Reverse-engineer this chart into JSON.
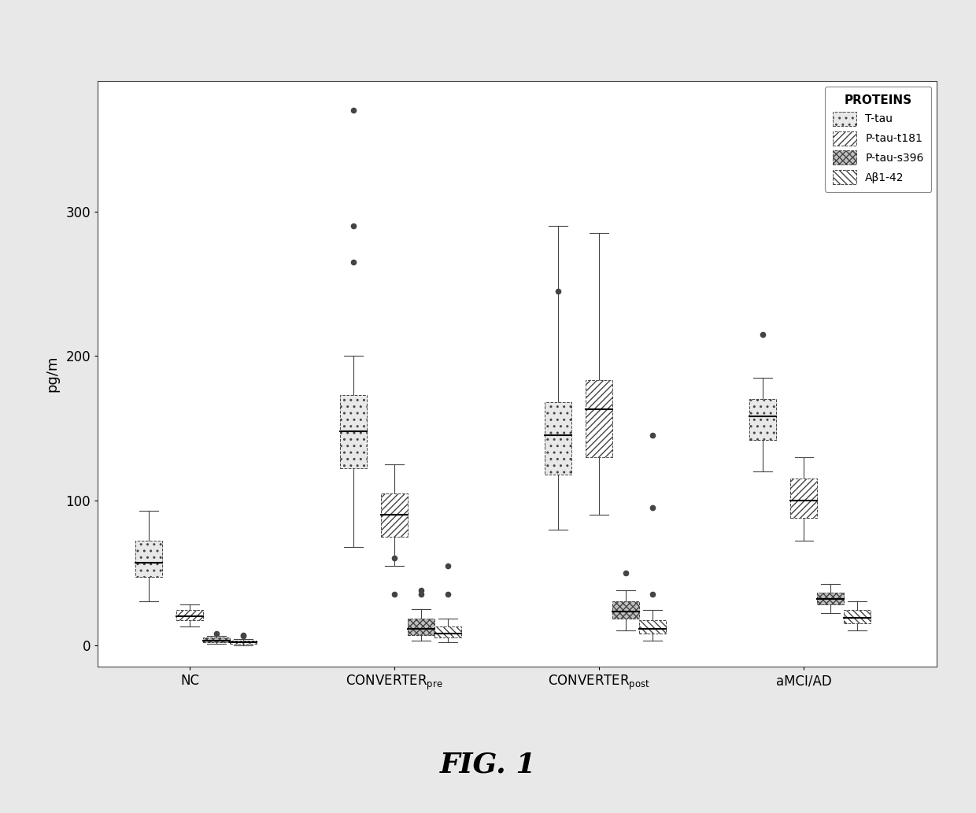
{
  "title": "FIG. 1",
  "ylabel": "pg/m",
  "groups": [
    "NC",
    "CONVERTER_pre",
    "CONVERTER_post",
    "aMCI/AD"
  ],
  "group_labels_main": [
    "NC",
    "CONVERTER",
    "CONVERTER",
    "aMCI/AD"
  ],
  "group_labels_sub": [
    "",
    "pre",
    "post",
    ""
  ],
  "proteins": [
    "T-tau",
    "P-tau-t181",
    "P-tau-s396",
    "Aβ1-42"
  ],
  "legend_proteins": [
    "T-tau",
    "P-tau-t181",
    "P-tau-s396",
    "Aβ1-42"
  ],
  "ylim": [
    -15,
    390
  ],
  "yticks": [
    0,
    100,
    200,
    300
  ],
  "box_width": 0.13,
  "protein_offsets": [
    -0.2,
    0.0,
    0.13,
    0.26
  ],
  "boxes": {
    "NC": {
      "T-tau": {
        "q1": 47,
        "median": 57,
        "q3": 72,
        "whislo": 30,
        "whishi": 93,
        "fliers": []
      },
      "P-tau-t181": {
        "q1": 17,
        "median": 20,
        "q3": 24,
        "whislo": 13,
        "whishi": 28,
        "fliers": []
      },
      "P-tau-s396": {
        "q1": 2,
        "median": 3,
        "q3": 5,
        "whislo": 1,
        "whishi": 6,
        "fliers": [
          8
        ]
      },
      "Aβ1-42": {
        "q1": 1,
        "median": 2,
        "q3": 3,
        "whislo": 0,
        "whishi": 4,
        "fliers": [
          6,
          7
        ]
      }
    },
    "CONVERTER_pre": {
      "T-tau": {
        "q1": 122,
        "median": 148,
        "q3": 173,
        "whislo": 68,
        "whishi": 200,
        "fliers": [
          265,
          290,
          370
        ]
      },
      "P-tau-t181": {
        "q1": 75,
        "median": 90,
        "q3": 105,
        "whislo": 55,
        "whishi": 125,
        "fliers": [
          60,
          35
        ]
      },
      "P-tau-s396": {
        "q1": 7,
        "median": 11,
        "q3": 18,
        "whislo": 3,
        "whishi": 25,
        "fliers": [
          35,
          38
        ]
      },
      "Aβ1-42": {
        "q1": 5,
        "median": 8,
        "q3": 13,
        "whislo": 2,
        "whishi": 18,
        "fliers": [
          35,
          55
        ]
      }
    },
    "CONVERTER_post": {
      "T-tau": {
        "q1": 118,
        "median": 145,
        "q3": 168,
        "whislo": 80,
        "whishi": 290,
        "fliers": [
          245
        ]
      },
      "P-tau-t181": {
        "q1": 130,
        "median": 163,
        "q3": 183,
        "whislo": 90,
        "whishi": 285,
        "fliers": []
      },
      "P-tau-s396": {
        "q1": 18,
        "median": 23,
        "q3": 30,
        "whislo": 10,
        "whishi": 38,
        "fliers": [
          50
        ]
      },
      "Aβ1-42": {
        "q1": 8,
        "median": 11,
        "q3": 17,
        "whislo": 3,
        "whishi": 24,
        "fliers": [
          35,
          95,
          145
        ]
      }
    },
    "aMCI/AD": {
      "T-tau": {
        "q1": 142,
        "median": 158,
        "q3": 170,
        "whislo": 120,
        "whishi": 185,
        "fliers": [
          215
        ]
      },
      "P-tau-t181": {
        "q1": 88,
        "median": 100,
        "q3": 115,
        "whislo": 72,
        "whishi": 130,
        "fliers": []
      },
      "P-tau-s396": {
        "q1": 28,
        "median": 32,
        "q3": 36,
        "whislo": 22,
        "whishi": 42,
        "fliers": []
      },
      "Aβ1-42": {
        "q1": 15,
        "median": 19,
        "q3": 24,
        "whislo": 10,
        "whishi": 30,
        "fliers": []
      }
    }
  },
  "hatch_patterns": [
    "..",
    "////",
    "xxxx",
    "\\\\\\\\"
  ],
  "facecolors": [
    "#e8e8e8",
    "#ffffff",
    "#c0c0c0",
    "#ffffff"
  ],
  "edgecolor": "#444444",
  "median_color": "#000000",
  "background_color": "#ffffff",
  "legend_title": "PROTEINS",
  "title_fontsize": 26,
  "axis_fontsize": 13,
  "tick_fontsize": 12,
  "outer_bg": "#e8e8e8"
}
